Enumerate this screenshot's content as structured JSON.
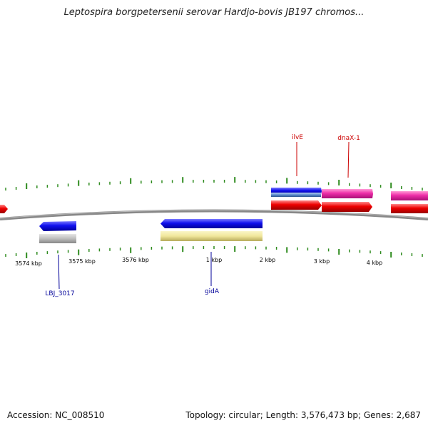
{
  "title": "Leptospira borgpetersenii serovar Hardjo-bovis JB197 chromos...",
  "footer": {
    "accession": "Accession: NC_008510",
    "stats": "Topology: circular; Length: 3,576,473 bp; Genes: 2,687"
  },
  "colors": {
    "background": "#ffffff",
    "backbone": "#777777",
    "tick": "#2e8b1e",
    "forward_label": "#cc0000",
    "reverse_label": "#000099"
  },
  "scale": {
    "tick_labels": [
      "3574 kbp",
      "3575 kbp",
      "3576 kbp",
      "1 kbp",
      "2 kbp",
      "3 kbp",
      "4 kbp"
    ]
  },
  "genes": [
    {
      "label": "ilvE",
      "strand": "forward",
      "color": "#cc0000"
    },
    {
      "label": "dnaX-1",
      "strand": "forward",
      "color": "#cc0000"
    },
    {
      "label": "LBJ_3017",
      "strand": "reverse",
      "color": "#000099"
    },
    {
      "label": "gidA",
      "strand": "reverse",
      "color": "#000099"
    }
  ]
}
